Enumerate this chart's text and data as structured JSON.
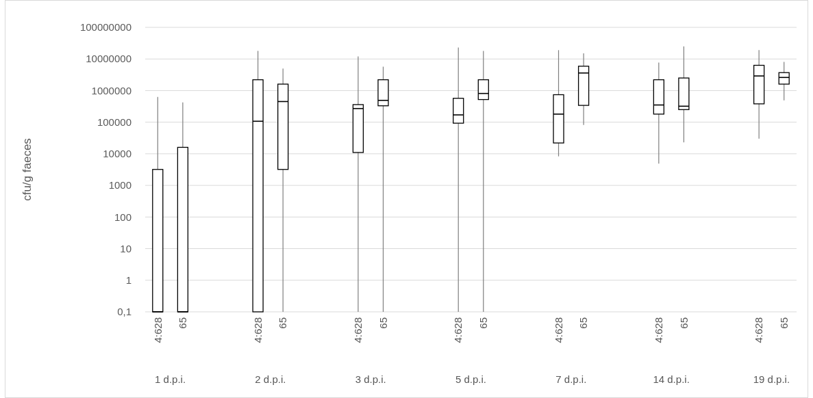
{
  "chart_data": {
    "type": "box",
    "ylabel": "cfu/g faeces",
    "log": true,
    "grid": "y",
    "categories": [
      "1 d.p.i.",
      "2 d.p.i.",
      "3 d.p.i.",
      "5 d.p.i.",
      "7 d.p.i.",
      "14 d.p.i.",
      "19 d.p.i."
    ],
    "ylim": [
      0.1,
      100000000
    ],
    "yticks": [
      {
        "value": 0.1,
        "label": "0,1"
      },
      1,
      10,
      100,
      1000,
      10000,
      100000,
      1000000,
      10000000,
      100000000
    ],
    "series": [
      {
        "name": "4:628",
        "color": "#000000",
        "boxes": [
          {
            "low": 0.1,
            "q1": 0.1,
            "median": 0.1,
            "q3": 3200,
            "high": 630000
          },
          {
            "low": 0.1,
            "q1": 0.1,
            "median": 107000,
            "q3": 2200000,
            "high": 18000000
          },
          {
            "low": 0.1,
            "q1": 11000,
            "median": 270000,
            "q3": 360000,
            "high": 12000000
          },
          {
            "low": 0.1,
            "q1": 93000,
            "median": 170000,
            "q3": 570000,
            "high": 23000000
          },
          {
            "low": 8300,
            "q1": 22000,
            "median": 180000,
            "q3": 740000,
            "high": 19000000
          },
          {
            "low": 4900,
            "q1": 180000,
            "median": 350000,
            "q3": 2200000,
            "high": 7700000
          },
          {
            "low": 30000,
            "q1": 380000,
            "median": 2900000,
            "q3": 6300000,
            "high": 19000000
          }
        ]
      },
      {
        "name": "65",
        "color": "#000000",
        "boxes": [
          {
            "low": 0.1,
            "q1": 0.1,
            "median": 0.1,
            "q3": 16000,
            "high": 420000
          },
          {
            "low": 0.1,
            "q1": 3200,
            "median": 450000,
            "q3": 1600000,
            "high": 5000000
          },
          {
            "low": 0.1,
            "q1": 330000,
            "median": 490000,
            "q3": 2200000,
            "high": 5700000
          },
          {
            "low": 0.1,
            "q1": 520000,
            "median": 810000,
            "q3": 2200000,
            "high": 18000000
          },
          {
            "low": 82000,
            "q1": 340000,
            "median": 3600000,
            "q3": 5900000,
            "high": 15000000
          },
          {
            "low": 23000,
            "q1": 250000,
            "median": 320000,
            "q3": 2500000,
            "high": 25000000
          },
          {
            "low": 490000,
            "q1": 1600000,
            "median": 2600000,
            "q3": 3700000,
            "high": 8100000
          }
        ]
      }
    ]
  }
}
